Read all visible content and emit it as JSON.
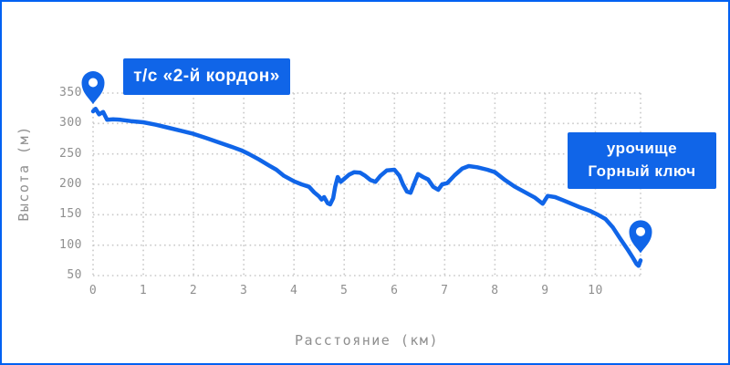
{
  "colors": {
    "accent_blue": "#1065e8",
    "canvas_border": "#0061f2",
    "grid_gray": "#c9c9c9",
    "axis_text_gray": "#8f8f8f",
    "annotation_text": "#ffffff"
  },
  "labels": {
    "start": {
      "text": "т/с «2-й кордон»"
    },
    "end": {
      "line1": "урочище",
      "line2": "Горный ключ"
    }
  },
  "chart_data": {
    "type": "line",
    "title": "",
    "xlabel": "Расстояние (км)",
    "ylabel": "Высота (м)",
    "xlim": [
      0,
      10.9
    ],
    "ylim": [
      50,
      350
    ],
    "x_ticks": [
      0,
      1,
      2,
      3,
      4,
      5,
      6,
      7,
      8,
      9,
      10
    ],
    "y_ticks": [
      350,
      300,
      250,
      200,
      150,
      100,
      50
    ],
    "grid": "dotted",
    "legend": "none",
    "series": [
      {
        "name": "elevation-profile",
        "points": [
          [
            0,
            320
          ],
          [
            0.05,
            324
          ],
          [
            0.12,
            315
          ],
          [
            0.2,
            319
          ],
          [
            0.28,
            306
          ],
          [
            0.4,
            307
          ],
          [
            0.55,
            306
          ],
          [
            0.75,
            304
          ],
          [
            1,
            302
          ],
          [
            1.25,
            298
          ],
          [
            1.5,
            293
          ],
          [
            1.75,
            288
          ],
          [
            2,
            283
          ],
          [
            2.25,
            276
          ],
          [
            2.5,
            269
          ],
          [
            2.75,
            262
          ],
          [
            2.95,
            256
          ],
          [
            3.1,
            250
          ],
          [
            3.3,
            241
          ],
          [
            3.5,
            231
          ],
          [
            3.65,
            224
          ],
          [
            3.8,
            214
          ],
          [
            4,
            205
          ],
          [
            4.15,
            200
          ],
          [
            4.3,
            196
          ],
          [
            4.4,
            187
          ],
          [
            4.5,
            180
          ],
          [
            4.55,
            175
          ],
          [
            4.6,
            179
          ],
          [
            4.67,
            169
          ],
          [
            4.72,
            167
          ],
          [
            4.78,
            177
          ],
          [
            4.82,
            196
          ],
          [
            4.87,
            212
          ],
          [
            4.93,
            204
          ],
          [
            5,
            209
          ],
          [
            5.1,
            216
          ],
          [
            5.2,
            220
          ],
          [
            5.32,
            219
          ],
          [
            5.42,
            214
          ],
          [
            5.52,
            207
          ],
          [
            5.62,
            204
          ],
          [
            5.72,
            214
          ],
          [
            5.85,
            223
          ],
          [
            6,
            224
          ],
          [
            6.1,
            214
          ],
          [
            6.17,
            200
          ],
          [
            6.25,
            188
          ],
          [
            6.32,
            186
          ],
          [
            6.4,
            203
          ],
          [
            6.47,
            217
          ],
          [
            6.57,
            212
          ],
          [
            6.67,
            208
          ],
          [
            6.77,
            196
          ],
          [
            6.87,
            191
          ],
          [
            6.95,
            200
          ],
          [
            7.05,
            202
          ],
          [
            7.2,
            215
          ],
          [
            7.35,
            226
          ],
          [
            7.48,
            230
          ],
          [
            7.65,
            228
          ],
          [
            7.85,
            224
          ],
          [
            8,
            220
          ],
          [
            8.2,
            207
          ],
          [
            8.4,
            196
          ],
          [
            8.6,
            187
          ],
          [
            8.8,
            178
          ],
          [
            8.95,
            168
          ],
          [
            9.05,
            181
          ],
          [
            9.2,
            179
          ],
          [
            9.35,
            174
          ],
          [
            9.5,
            169
          ],
          [
            9.7,
            162
          ],
          [
            9.9,
            156
          ],
          [
            10.05,
            150
          ],
          [
            10.2,
            143
          ],
          [
            10.35,
            129
          ],
          [
            10.5,
            110
          ],
          [
            10.65,
            92
          ],
          [
            10.75,
            79
          ],
          [
            10.82,
            69
          ],
          [
            10.86,
            66
          ],
          [
            10.9,
            75
          ]
        ]
      }
    ],
    "markers": [
      {
        "name": "start",
        "x": 0,
        "y": 320
      },
      {
        "name": "end",
        "x": 10.9,
        "y": 75
      }
    ]
  }
}
